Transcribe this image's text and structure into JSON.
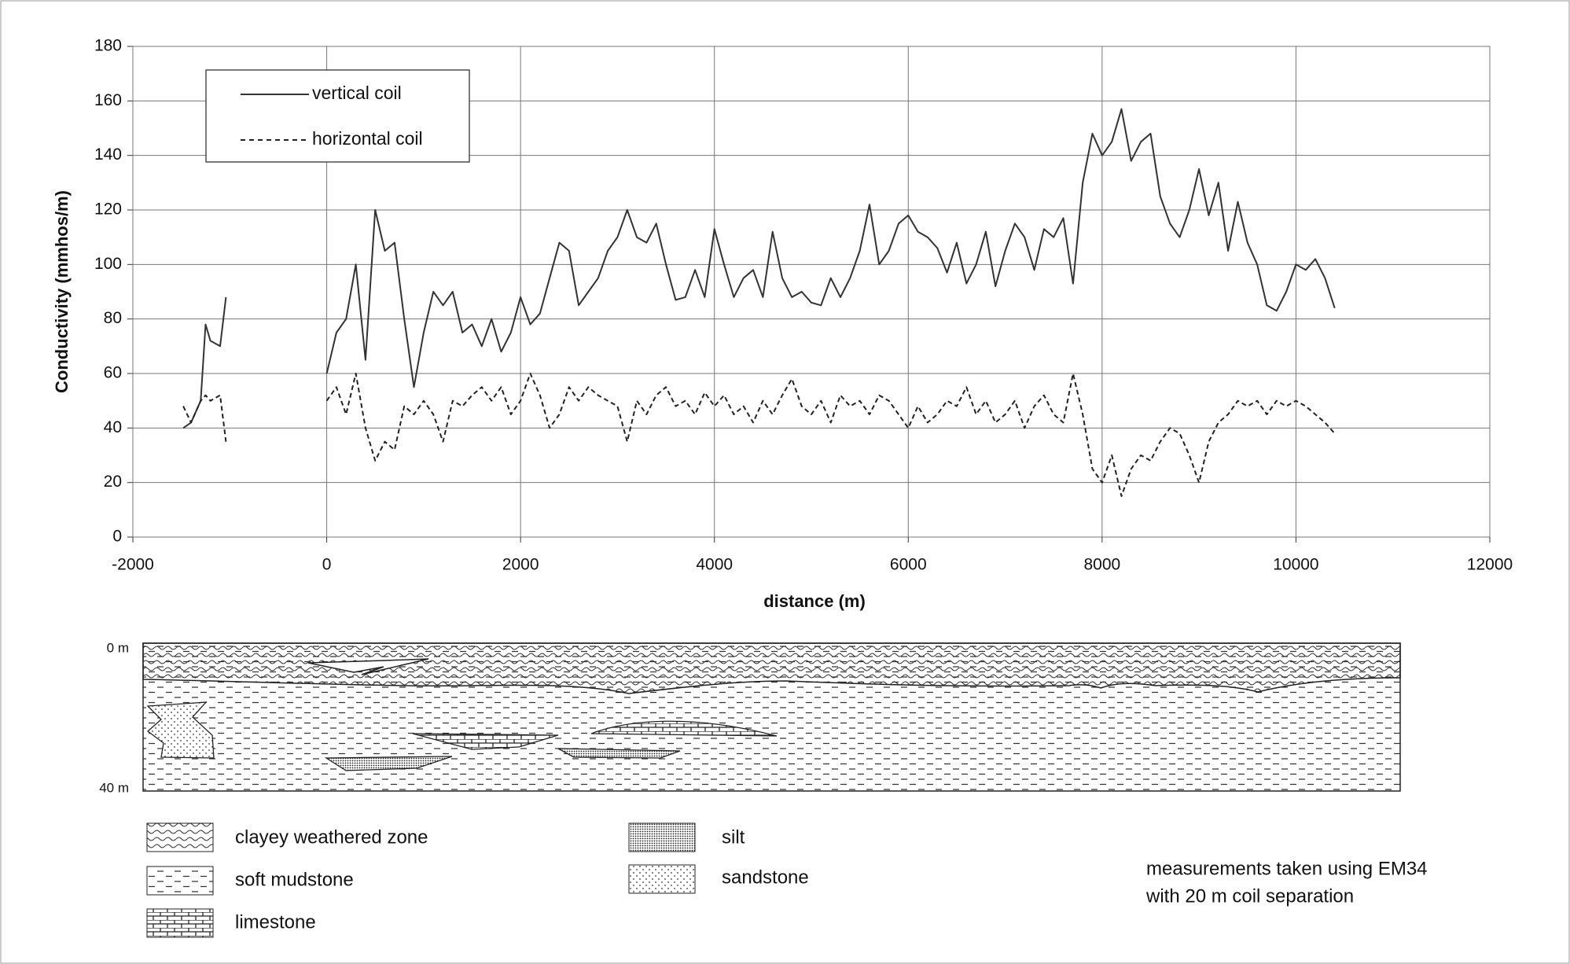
{
  "chart_data": {
    "type": "line",
    "x_label": "distance (m)",
    "y_label": "Conductivity (mmhos/m)",
    "x": [
      -1480,
      -1400,
      -1300,
      -1250,
      -1200,
      -1100,
      -1040,
      -500,
      0,
      100,
      200,
      300,
      400,
      500,
      600,
      700,
      800,
      900,
      1000,
      1100,
      1200,
      1300,
      1400,
      1500,
      1600,
      1700,
      1800,
      1900,
      2000,
      2100,
      2200,
      2300,
      2400,
      2500,
      2600,
      2700,
      2800,
      2900,
      3000,
      3100,
      3200,
      3300,
      3400,
      3500,
      3600,
      3700,
      3800,
      3900,
      4000,
      4100,
      4200,
      4300,
      4400,
      4500,
      4600,
      4700,
      4800,
      4900,
      5000,
      5100,
      5200,
      5300,
      5400,
      5500,
      5600,
      5700,
      5800,
      5900,
      6000,
      6100,
      6200,
      6300,
      6400,
      6500,
      6600,
      6700,
      6800,
      6900,
      7000,
      7100,
      7200,
      7300,
      7400,
      7500,
      7600,
      7700,
      7800,
      7900,
      8000,
      8100,
      8200,
      8300,
      8400,
      8500,
      8600,
      8700,
      8800,
      8900,
      9000,
      9100,
      9200,
      9300,
      9400,
      9500,
      9600,
      9700,
      9800,
      9900,
      10000,
      10100,
      10200,
      10300,
      10400
    ],
    "series": [
      {
        "name": "vertical coil",
        "color": "#333333",
        "line_style": "solid",
        "values": [
          40,
          42,
          50,
          78,
          72,
          70,
          88,
          null,
          60,
          75,
          80,
          100,
          65,
          120,
          105,
          108,
          80,
          55,
          75,
          90,
          85,
          90,
          75,
          78,
          70,
          80,
          68,
          75,
          88,
          78,
          82,
          95,
          108,
          105,
          85,
          90,
          95,
          105,
          110,
          120,
          110,
          108,
          115,
          100,
          87,
          88,
          98,
          88,
          113,
          100,
          88,
          95,
          98,
          88,
          112,
          95,
          88,
          90,
          86,
          85,
          95,
          88,
          95,
          105,
          122,
          100,
          105,
          115,
          118,
          112,
          110,
          106,
          97,
          108,
          93,
          100,
          112,
          92,
          105,
          115,
          110,
          98,
          113,
          110,
          117,
          93,
          130,
          148,
          140,
          145,
          157,
          138,
          145,
          148,
          125,
          115,
          110,
          120,
          135,
          118,
          130,
          105,
          123,
          108,
          100,
          85,
          83,
          90,
          100,
          98,
          102,
          95,
          84
        ]
      },
      {
        "name": "horizontal coil",
        "color": "#222222",
        "line_style": "dashed",
        "values": [
          48,
          42,
          50,
          52,
          50,
          52,
          35,
          null,
          50,
          55,
          45,
          60,
          40,
          28,
          35,
          32,
          48,
          45,
          50,
          45,
          35,
          50,
          48,
          52,
          55,
          50,
          55,
          45,
          50,
          60,
          52,
          40,
          45,
          55,
          50,
          55,
          52,
          50,
          48,
          35,
          50,
          45,
          52,
          55,
          48,
          50,
          45,
          53,
          48,
          52,
          45,
          48,
          42,
          50,
          45,
          52,
          58,
          48,
          45,
          50,
          42,
          52,
          48,
          50,
          45,
          52,
          50,
          45,
          40,
          48,
          42,
          45,
          50,
          48,
          55,
          45,
          50,
          42,
          45,
          50,
          40,
          48,
          52,
          45,
          42,
          60,
          45,
          25,
          20,
          30,
          15,
          25,
          30,
          28,
          35,
          40,
          38,
          30,
          20,
          35,
          42,
          45,
          50,
          48,
          50,
          45,
          50,
          48,
          50,
          48,
          45,
          42,
          38
        ]
      }
    ],
    "xlim": [
      -2000,
      12000
    ],
    "xticks": [
      -2000,
      0,
      2000,
      4000,
      6000,
      8000,
      10000,
      12000
    ],
    "ylim": [
      0,
      180
    ],
    "yticks": [
      0,
      20,
      40,
      60,
      80,
      100,
      120,
      140,
      160,
      180
    ],
    "grid": true,
    "legend": "upper left"
  },
  "section": {
    "top_label": "0 m",
    "bottom_label": "40 m",
    "legend": [
      "clayey weathered zone",
      "soft mudstone",
      "limestone",
      "silt",
      "sandstone"
    ],
    "note": [
      "measurements taken using EM34",
      "with 20 m coil separation"
    ]
  }
}
